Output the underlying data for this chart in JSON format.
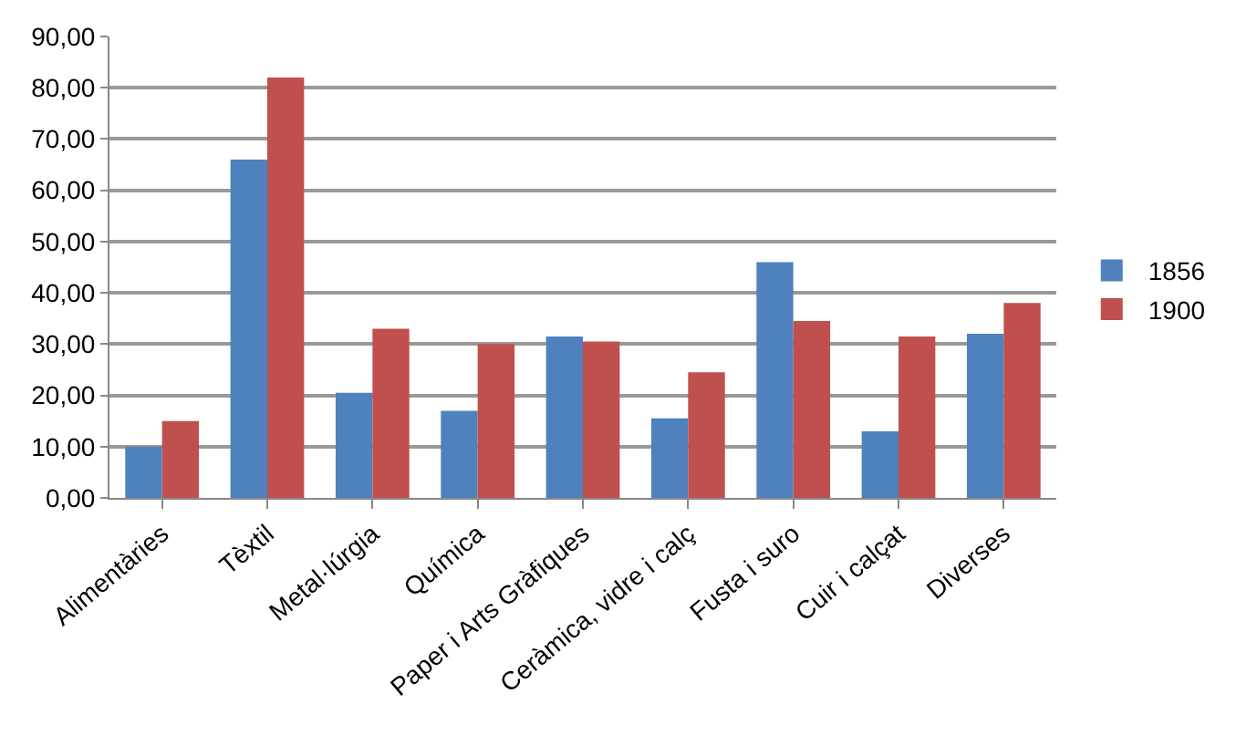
{
  "chart_data": {
    "type": "bar",
    "categories": [
      "Alimentàries",
      "Tèxtil",
      "Metal·lúrgia",
      "Química",
      "Paper i Arts Gràfiques",
      "Ceràmica, vidre i calç",
      "Fusta i suro",
      "Cuir i calçat",
      "Diverses"
    ],
    "series": [
      {
        "name": "1856",
        "color": "#4f81bd",
        "values": [
          10,
          66,
          20.5,
          17,
          31.5,
          15.5,
          46,
          13,
          32
        ]
      },
      {
        "name": "1900",
        "color": "#c0504d",
        "values": [
          15,
          82,
          33,
          30,
          30.5,
          24.5,
          34.5,
          31.5,
          38
        ]
      }
    ],
    "ylim": [
      0,
      90
    ],
    "yticks": [
      {
        "value": 0,
        "label": "0,00"
      },
      {
        "value": 10,
        "label": "10,00"
      },
      {
        "value": 20,
        "label": "20,00"
      },
      {
        "value": 30,
        "label": "30,00"
      },
      {
        "value": 40,
        "label": "40,00"
      },
      {
        "value": 50,
        "label": "50,00"
      },
      {
        "value": 60,
        "label": "60,00"
      },
      {
        "value": 70,
        "label": "70,00"
      },
      {
        "value": 80,
        "label": "80,00"
      },
      {
        "value": 90,
        "label": "90,00"
      }
    ],
    "grid": "y",
    "legend": "right"
  }
}
